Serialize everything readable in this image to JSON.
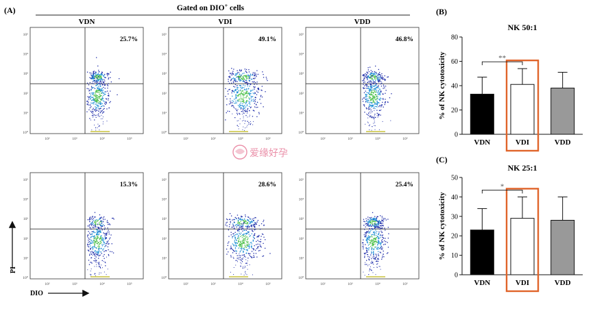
{
  "figure": {
    "panel_a_label": "(A)",
    "panel_b_label": "(B)",
    "panel_c_label": "(C)",
    "gated_header": "Gated on DIO",
    "gated_header_sup": "+",
    "gated_header_tail": " cells",
    "y_axis_arrow_label": "PI",
    "x_axis_arrow_label": "DIO",
    "watermark_text": "爱缘好孕"
  },
  "flow": {
    "column_titles": [
      "VDN",
      "VDI",
      "VDD"
    ],
    "tick_labels": [
      "10⁰",
      "10¹",
      "10²",
      "10³",
      "10⁴",
      "10⁵"
    ],
    "rows": [
      {
        "percents": [
          "25.7%",
          "49.1%",
          "46.8%"
        ]
      },
      {
        "percents": [
          "15.3%",
          "28.6%",
          "25.4%"
        ]
      }
    ]
  },
  "chart_data": [
    {
      "type": "bar",
      "title": "NK 50:1",
      "ylabel": "% of NK cytotoxicity",
      "categories": [
        "VDN",
        "VDI",
        "VDD"
      ],
      "values": [
        33,
        41,
        38
      ],
      "error_upper": [
        47,
        54,
        51
      ],
      "ylim": [
        0,
        80
      ],
      "yticks": [
        0,
        20,
        40,
        60,
        80
      ],
      "bar_colors": [
        "#000000",
        "#ffffff",
        "#999999"
      ],
      "highlight_category": "VDI",
      "highlight_color": "#e0642a",
      "significance": {
        "from": "VDN",
        "to": "VDI",
        "label": "**"
      }
    },
    {
      "type": "bar",
      "title": "NK 25:1",
      "ylabel": "% of NK cytotoxicity",
      "categories": [
        "VDN",
        "VDI",
        "VDD"
      ],
      "values": [
        23,
        29,
        28
      ],
      "error_upper": [
        34,
        40,
        40
      ],
      "ylim": [
        0,
        50
      ],
      "yticks": [
        0,
        10,
        20,
        30,
        40,
        50
      ],
      "bar_colors": [
        "#000000",
        "#ffffff",
        "#999999"
      ],
      "highlight_category": "VDI",
      "highlight_color": "#e0642a",
      "significance": {
        "from": "VDN",
        "to": "VDI",
        "label": "*"
      }
    }
  ]
}
